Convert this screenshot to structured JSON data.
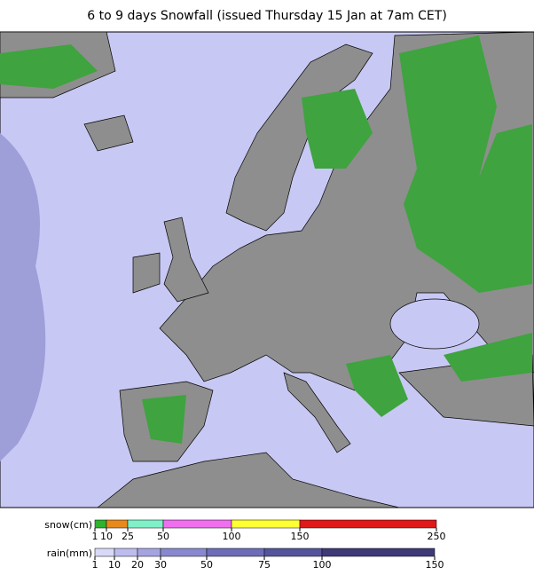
{
  "title": "6 to 9 days Snowfall (issued Thursday 15 Jan at 7am CET)",
  "legend": {
    "snow": {
      "label": "snow(cm)",
      "ticks": [
        1,
        10,
        25,
        50,
        100,
        150,
        250
      ],
      "colors": [
        "#2db32d",
        "#e8891c",
        "#7ff0c8",
        "#f06ef0",
        "#ffff33",
        "#e01818"
      ]
    },
    "rain": {
      "label": "rain(mm)",
      "ticks": [
        1,
        10,
        20,
        30,
        50,
        75,
        100,
        150
      ],
      "colors": [
        "#d8d8f8",
        "#bcbcee",
        "#a4a4e2",
        "#8888d0",
        "#6c6cb8",
        "#54549c",
        "#3e3a78"
      ]
    }
  }
}
